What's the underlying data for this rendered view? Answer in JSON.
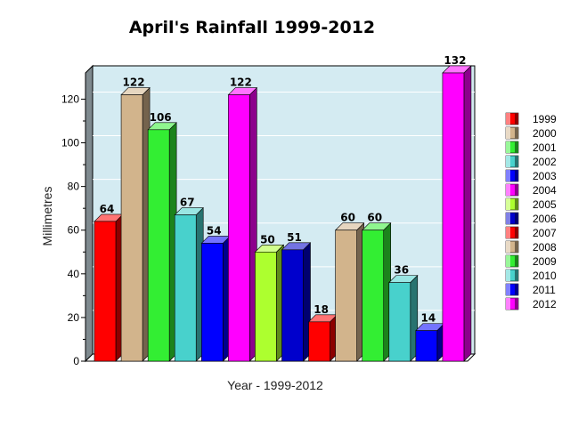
{
  "chart_data": {
    "type": "bar",
    "title": "April's Rainfall 1999-2012",
    "xlabel": "Year - 1999-2012",
    "ylabel": "Millimetres",
    "ylim": [
      0,
      132
    ],
    "yticks": [
      0,
      20,
      40,
      60,
      80,
      100,
      120
    ],
    "grid": true,
    "legend_position": "right",
    "categories": [
      "1999",
      "2000",
      "2001",
      "2002",
      "2003",
      "2004",
      "2005",
      "2006",
      "2007",
      "2008",
      "2009",
      "2010",
      "2011",
      "2012"
    ],
    "values": [
      64,
      122,
      106,
      67,
      54,
      122,
      50,
      51,
      18,
      60,
      60,
      36,
      14,
      132
    ],
    "colors": [
      "#ff0000",
      "#d2b48c",
      "#33ee33",
      "#48d1cc",
      "#0000ff",
      "#ff00ff",
      "#adff2f",
      "#0000cc",
      "#ff0000",
      "#d2b48c",
      "#33ee33",
      "#48d1cc",
      "#0000ff",
      "#ff00ff"
    ],
    "plot_background": "#d4ebf2"
  }
}
